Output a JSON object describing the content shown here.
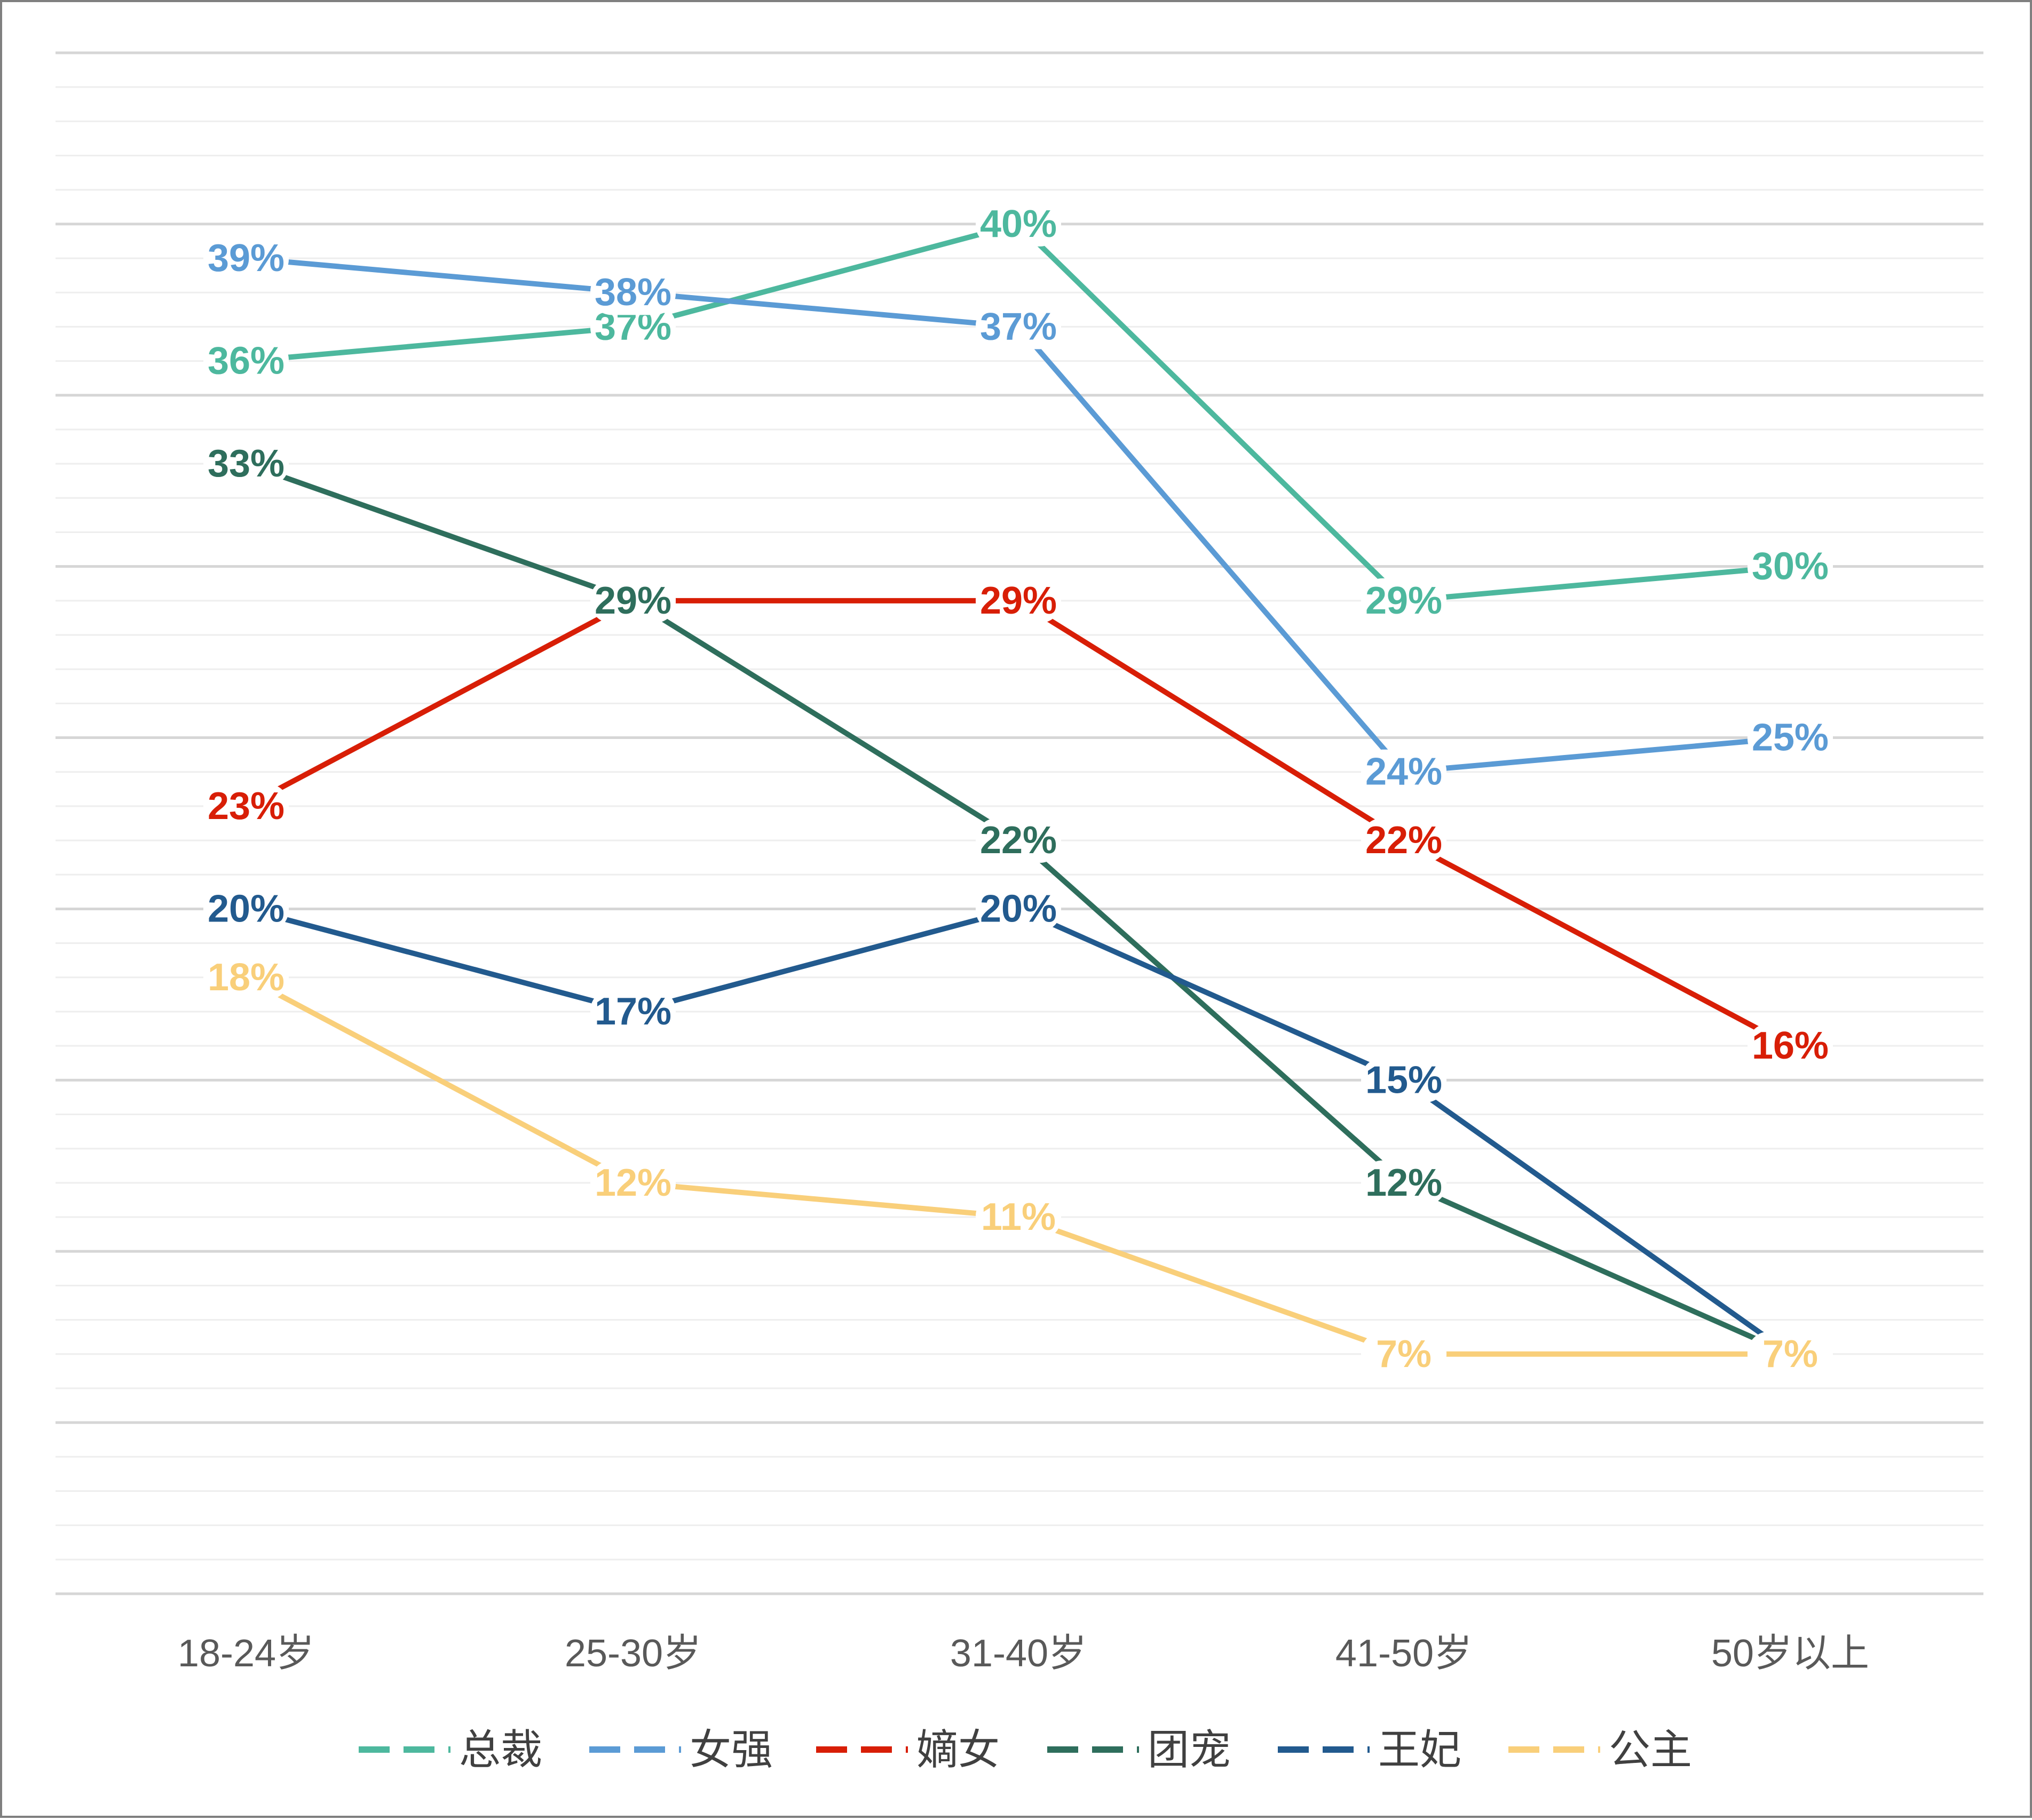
{
  "chart_data": {
    "type": "line",
    "title": "",
    "xlabel": "",
    "ylabel": "",
    "categories": [
      "18-24岁",
      "25-30岁",
      "31-40岁",
      "41-50岁",
      "50岁以上"
    ],
    "ylim": [
      0,
      0.45
    ],
    "grid": true,
    "legend_position": "bottom",
    "series": [
      {
        "name": "总裁",
        "color": "#4DB89E",
        "values": [
          0.36,
          0.37,
          0.4,
          0.29,
          0.3
        ],
        "labels": [
          "36%",
          "37%",
          "40%",
          "29%",
          "30%"
        ]
      },
      {
        "name": "女强",
        "color": "#5B9BD5",
        "values": [
          0.39,
          0.38,
          0.37,
          0.24,
          0.25
        ],
        "labels": [
          "39%",
          "38%",
          "37%",
          "24%",
          "25%"
        ]
      },
      {
        "name": "嫡女",
        "color": "#D81E06",
        "values": [
          0.23,
          0.29,
          0.29,
          0.22,
          0.16
        ],
        "labels": [
          "23%",
          "29%",
          "29%",
          "22%",
          "16%"
        ]
      },
      {
        "name": "团宠",
        "color": "#2E6E5C",
        "values": [
          0.33,
          0.29,
          0.22,
          0.12,
          0.07
        ],
        "labels": [
          "33%",
          "29%",
          "22%",
          "12%",
          "7%"
        ]
      },
      {
        "name": "王妃",
        "color": "#225A8E",
        "values": [
          0.2,
          0.17,
          0.2,
          0.15,
          0.07
        ],
        "labels": [
          "20%",
          "17%",
          "20%",
          "15%",
          "7%"
        ]
      },
      {
        "name": "公主",
        "color": "#F9CF7A",
        "values": [
          0.18,
          0.12,
          0.11,
          0.07,
          0.07
        ],
        "labels": [
          "18%",
          "12%",
          "11%",
          "7%",
          "7%"
        ]
      }
    ]
  }
}
